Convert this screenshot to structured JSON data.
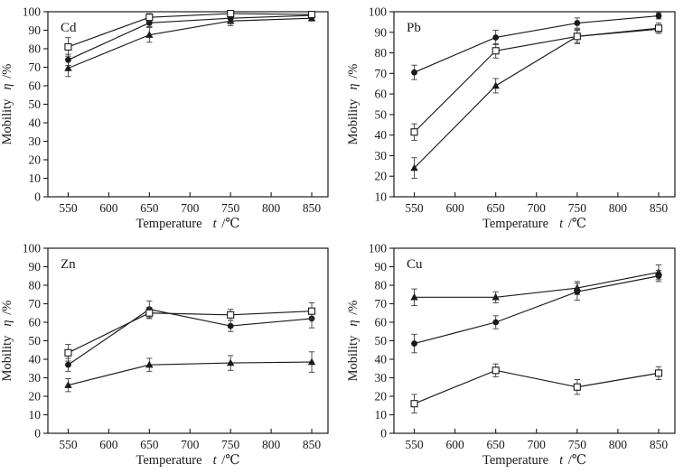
{
  "figure": {
    "background": "#ffffff",
    "line_color": "#1a1a1a",
    "errorbar_color": "#3d3d3d",
    "xlabel": {
      "prefix": "Temperature",
      "symbol": "t",
      "suffix": "/℃"
    },
    "ylabel": {
      "prefix": "Mobility",
      "symbol": "η",
      "suffix": "/%"
    }
  },
  "chart_data": [
    {
      "type": "line",
      "panel_label": "Cd",
      "xlabel": "Temperature t/℃",
      "ylabel": "Mobility η/%",
      "x": [
        550,
        650,
        750,
        850
      ],
      "xticks": [
        550,
        600,
        650,
        700,
        750,
        800,
        850
      ],
      "xlim": [
        525,
        870
      ],
      "ylim": [
        0,
        100
      ],
      "ytick_step": 10,
      "grid": false,
      "legend": "none",
      "series": [
        {
          "name": "filled-triangle",
          "marker": "filled-triangle",
          "values": [
            69.5,
            87.5,
            95,
            96.5
          ],
          "yerr": [
            4.5,
            4,
            2.5,
            1.5
          ]
        },
        {
          "name": "filled-circle",
          "marker": "filled-circle",
          "values": [
            74,
            94,
            96.5,
            98
          ],
          "yerr": [
            3,
            2,
            2,
            1
          ]
        },
        {
          "name": "open-square",
          "marker": "open-square",
          "values": [
            81,
            97,
            99,
            98.5
          ],
          "yerr": [
            5,
            2,
            1,
            1.5
          ]
        }
      ]
    },
    {
      "type": "line",
      "panel_label": "Pb",
      "xlabel": "Temperature t/℃",
      "ylabel": "Mobility η/%",
      "x": [
        550,
        650,
        750,
        850
      ],
      "xticks": [
        550,
        600,
        650,
        700,
        750,
        800,
        850
      ],
      "xlim": [
        525,
        870
      ],
      "ylim": [
        10,
        100
      ],
      "ytick_step": 10,
      "grid": false,
      "legend": "none",
      "series": [
        {
          "name": "filled-triangle",
          "marker": "filled-triangle",
          "values": [
            24,
            64,
            88,
            91.5
          ],
          "yerr": [
            5,
            3.5,
            3,
            2
          ]
        },
        {
          "name": "filled-circle",
          "marker": "filled-circle",
          "values": [
            70.5,
            87.5,
            94.5,
            98
          ],
          "yerr": [
            3.5,
            3.5,
            2.5,
            1.5
          ]
        },
        {
          "name": "open-square",
          "marker": "open-square",
          "values": [
            41.5,
            81,
            88,
            92
          ],
          "yerr": [
            4,
            3.5,
            3.5,
            2.5
          ]
        }
      ]
    },
    {
      "type": "line",
      "panel_label": "Zn",
      "xlabel": "Temperature t/℃",
      "ylabel": "Mobility η/%",
      "x": [
        550,
        650,
        750,
        850
      ],
      "xticks": [
        550,
        600,
        650,
        700,
        750,
        800,
        850
      ],
      "xlim": [
        525,
        870
      ],
      "ylim": [
        0,
        100
      ],
      "ytick_step": 10,
      "grid": false,
      "legend": "none",
      "series": [
        {
          "name": "filled-triangle",
          "marker": "filled-triangle",
          "values": [
            26,
            37,
            38,
            38.5
          ],
          "yerr": [
            3.5,
            3.5,
            4,
            5.5
          ]
        },
        {
          "name": "filled-circle",
          "marker": "filled-circle",
          "values": [
            37,
            67,
            58,
            62
          ],
          "yerr": [
            3.5,
            4.5,
            3,
            5
          ]
        },
        {
          "name": "open-square",
          "marker": "open-square",
          "values": [
            43.5,
            65,
            64,
            66
          ],
          "yerr": [
            4.5,
            3,
            3,
            4.5
          ]
        }
      ]
    },
    {
      "type": "line",
      "panel_label": "Cu",
      "xlabel": "Temperature t/℃",
      "ylabel": "Mobility η/%",
      "x": [
        550,
        650,
        750,
        850
      ],
      "xticks": [
        550,
        600,
        650,
        700,
        750,
        800,
        850
      ],
      "xlim": [
        525,
        870
      ],
      "ylim": [
        0,
        100
      ],
      "ytick_step": 10,
      "grid": false,
      "legend": "none",
      "series": [
        {
          "name": "filled-triangle",
          "marker": "filled-triangle",
          "values": [
            73.5,
            73.5,
            78.5,
            87
          ],
          "yerr": [
            4.5,
            3,
            3.5,
            4
          ]
        },
        {
          "name": "filled-circle",
          "marker": "filled-circle",
          "values": [
            48.5,
            60,
            76.5,
            85
          ],
          "yerr": [
            5,
            3.5,
            4.5,
            3
          ]
        },
        {
          "name": "open-square",
          "marker": "open-square",
          "values": [
            16,
            34,
            25,
            32.5
          ],
          "yerr": [
            5,
            3.5,
            4,
            3.5
          ]
        }
      ]
    }
  ]
}
